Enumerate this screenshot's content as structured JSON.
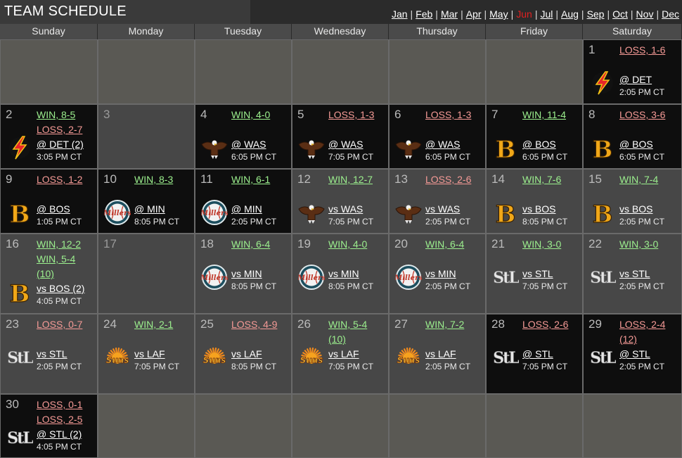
{
  "header": {
    "title": "TEAM SCHEDULE",
    "months": [
      "Jan",
      "Feb",
      "Mar",
      "Apr",
      "May",
      "Jun",
      "Jul",
      "Aug",
      "Sep",
      "Oct",
      "Nov",
      "Dec"
    ],
    "current_month": "Jun"
  },
  "weekdays": [
    "Sunday",
    "Monday",
    "Tuesday",
    "Wednesday",
    "Thursday",
    "Friday",
    "Saturday"
  ],
  "colors": {
    "win": "#9cf08e",
    "loss": "#f59a96",
    "current_month": "#e02020",
    "home_cell": "#474747",
    "away_cell": "#0e0e0e",
    "empty_cell": "#5a5954"
  },
  "days": [
    {
      "day": "1",
      "type": "away",
      "results": [
        {
          "text": "LOSS, 1-6",
          "kind": "loss"
        }
      ],
      "opponent": "@ DET",
      "time": "2:05 PM CT",
      "logo": "lightning-bolt-icon"
    },
    {
      "day": "2",
      "type": "away",
      "results": [
        {
          "text": "WIN, 8-5",
          "kind": "win"
        },
        {
          "text": "LOSS, 2-7",
          "kind": "loss"
        }
      ],
      "opponent": "@ DET (2)",
      "time": "3:05 PM CT",
      "logo": "lightning-bolt-icon"
    },
    {
      "day": "3",
      "type": "off"
    },
    {
      "day": "4",
      "type": "away",
      "results": [
        {
          "text": "WIN, 4-0",
          "kind": "win"
        }
      ],
      "opponent": "@ WAS",
      "time": "6:05 PM CT",
      "logo": "eagle-icon"
    },
    {
      "day": "5",
      "type": "away",
      "results": [
        {
          "text": "LOSS, 1-3",
          "kind": "loss"
        }
      ],
      "opponent": "@ WAS",
      "time": "7:05 PM CT",
      "logo": "eagle-icon"
    },
    {
      "day": "6",
      "type": "away",
      "results": [
        {
          "text": "LOSS, 1-3",
          "kind": "loss"
        }
      ],
      "opponent": "@ WAS",
      "time": "6:05 PM CT",
      "logo": "eagle-icon"
    },
    {
      "day": "7",
      "type": "away",
      "results": [
        {
          "text": "WIN, 11-4",
          "kind": "win"
        }
      ],
      "opponent": "@ BOS",
      "time": "6:05 PM CT",
      "logo": "letter-b-icon"
    },
    {
      "day": "8",
      "type": "away",
      "results": [
        {
          "text": "LOSS, 3-6",
          "kind": "loss"
        }
      ],
      "opponent": "@ BOS",
      "time": "6:05 PM CT",
      "logo": "letter-b-icon"
    },
    {
      "day": "9",
      "type": "away",
      "results": [
        {
          "text": "LOSS, 1-2",
          "kind": "loss"
        }
      ],
      "opponent": "@ BOS",
      "time": "1:05 PM CT",
      "logo": "letter-b-icon"
    },
    {
      "day": "10",
      "type": "away",
      "results": [
        {
          "text": "WIN, 8-3",
          "kind": "win"
        }
      ],
      "opponent": "@ MIN",
      "time": "8:05 PM CT",
      "logo": "millers-baseball-icon"
    },
    {
      "day": "11",
      "type": "away",
      "results": [
        {
          "text": "WIN, 6-1",
          "kind": "win"
        }
      ],
      "opponent": "@ MIN",
      "time": "2:05 PM CT",
      "logo": "millers-baseball-icon"
    },
    {
      "day": "12",
      "type": "home",
      "results": [
        {
          "text": "WIN, 12-7",
          "kind": "win"
        }
      ],
      "opponent": "vs WAS",
      "time": "7:05 PM CT",
      "logo": "eagle-icon"
    },
    {
      "day": "13",
      "type": "home",
      "results": [
        {
          "text": "LOSS, 2-6",
          "kind": "loss"
        }
      ],
      "opponent": "vs WAS",
      "time": "2:05 PM CT",
      "logo": "eagle-icon"
    },
    {
      "day": "14",
      "type": "home",
      "results": [
        {
          "text": "WIN, 7-6",
          "kind": "win"
        }
      ],
      "opponent": "vs BOS",
      "time": "8:05 PM CT",
      "logo": "letter-b-icon"
    },
    {
      "day": "15",
      "type": "home",
      "results": [
        {
          "text": "WIN, 7-4",
          "kind": "win"
        }
      ],
      "opponent": "vs BOS",
      "time": "2:05 PM CT",
      "logo": "letter-b-icon"
    },
    {
      "day": "16",
      "type": "home",
      "results": [
        {
          "text": "WIN, 12-2",
          "kind": "win"
        },
        {
          "text": "WIN, 5-4",
          "kind": "win"
        },
        {
          "text": "(10)",
          "kind": "win"
        }
      ],
      "opponent": "vs BOS (2)",
      "time": "4:05 PM CT",
      "logo": "letter-b-icon"
    },
    {
      "day": "17",
      "type": "off"
    },
    {
      "day": "18",
      "type": "home",
      "results": [
        {
          "text": "WIN, 6-4",
          "kind": "win"
        }
      ],
      "opponent": "vs MIN",
      "time": "8:05 PM CT",
      "logo": "millers-baseball-icon"
    },
    {
      "day": "19",
      "type": "home",
      "results": [
        {
          "text": "WIN, 4-0",
          "kind": "win"
        }
      ],
      "opponent": "vs MIN",
      "time": "8:05 PM CT",
      "logo": "millers-baseball-icon"
    },
    {
      "day": "20",
      "type": "home",
      "results": [
        {
          "text": "WIN, 6-4",
          "kind": "win"
        }
      ],
      "opponent": "vs MIN",
      "time": "2:05 PM CT",
      "logo": "millers-baseball-icon"
    },
    {
      "day": "21",
      "type": "home",
      "results": [
        {
          "text": "WIN, 3-0",
          "kind": "win"
        }
      ],
      "opponent": "vs STL",
      "time": "7:05 PM CT",
      "logo": "stl-icon"
    },
    {
      "day": "22",
      "type": "home",
      "results": [
        {
          "text": "WIN, 3-0",
          "kind": "win"
        }
      ],
      "opponent": "vs STL",
      "time": "2:05 PM CT",
      "logo": "stl-icon"
    },
    {
      "day": "23",
      "type": "home",
      "results": [
        {
          "text": "LOSS, 0-7",
          "kind": "loss"
        }
      ],
      "opponent": "vs STL",
      "time": "2:05 PM CT",
      "logo": "stl-icon"
    },
    {
      "day": "24",
      "type": "home",
      "results": [
        {
          "text": "WIN, 2-1",
          "kind": "win"
        }
      ],
      "opponent": "vs LAF",
      "time": "7:05 PM CT",
      "logo": "suns-icon"
    },
    {
      "day": "25",
      "type": "home",
      "results": [
        {
          "text": "LOSS, 4-9",
          "kind": "loss"
        }
      ],
      "opponent": "vs LAF",
      "time": "8:05 PM CT",
      "logo": "suns-icon"
    },
    {
      "day": "26",
      "type": "home",
      "results": [
        {
          "text": "WIN, 5-4",
          "kind": "win"
        },
        {
          "text": "(10)",
          "kind": "win"
        }
      ],
      "opponent": "vs LAF",
      "time": "7:05 PM CT",
      "logo": "suns-icon"
    },
    {
      "day": "27",
      "type": "home",
      "results": [
        {
          "text": "WIN, 7-2",
          "kind": "win"
        }
      ],
      "opponent": "vs LAF",
      "time": "2:05 PM CT",
      "logo": "suns-icon"
    },
    {
      "day": "28",
      "type": "away",
      "results": [
        {
          "text": "LOSS, 2-6",
          "kind": "loss"
        }
      ],
      "opponent": "@ STL",
      "time": "7:05 PM CT",
      "logo": "stl-icon"
    },
    {
      "day": "29",
      "type": "away",
      "results": [
        {
          "text": "LOSS, 2-4",
          "kind": "loss"
        },
        {
          "text": "(12)",
          "kind": "loss"
        }
      ],
      "opponent": "@ STL",
      "time": "2:05 PM CT",
      "logo": "stl-icon"
    },
    {
      "day": "30",
      "type": "away",
      "results": [
        {
          "text": "LOSS, 0-1",
          "kind": "loss"
        },
        {
          "text": "LOSS, 2-5",
          "kind": "loss"
        }
      ],
      "opponent": "@ STL (2)",
      "time": "4:05 PM CT",
      "logo": "stl-icon"
    }
  ]
}
